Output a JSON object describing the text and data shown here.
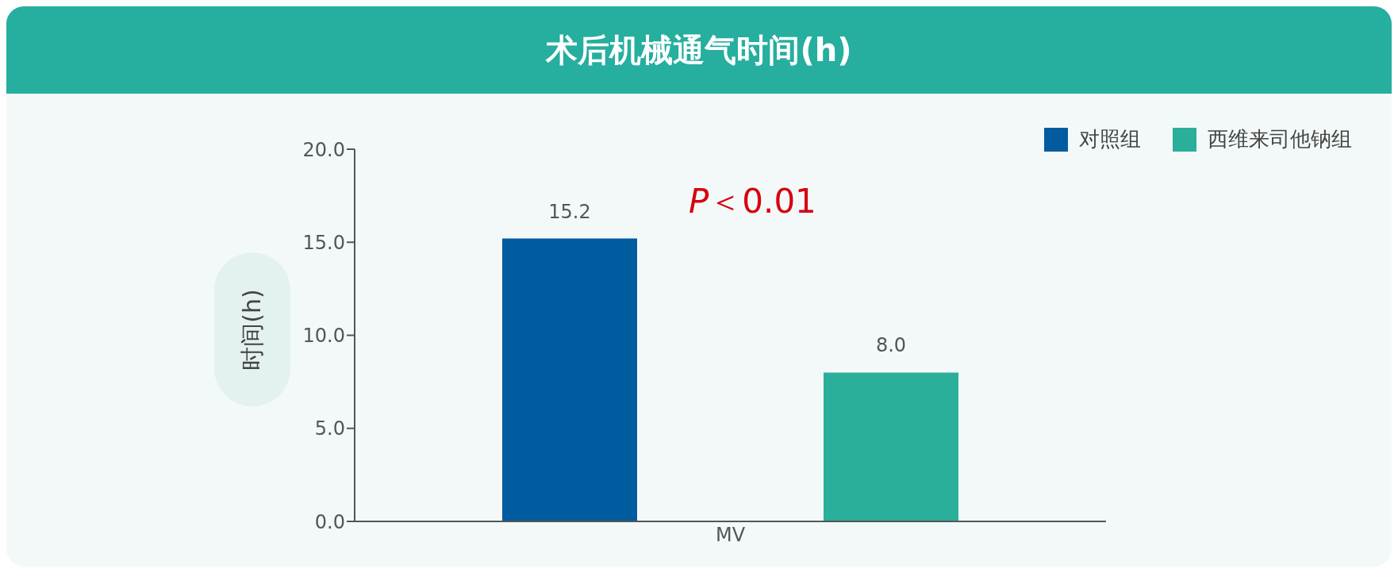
{
  "chart_data": {
    "type": "bar",
    "title": "术后机械通气时间(h)",
    "ylabel": "时间(h)",
    "categories": [
      "MV"
    ],
    "series": [
      {
        "name": "对照组",
        "color": "#005b9f",
        "values": [
          15.2
        ],
        "value_labels": [
          "15.2"
        ]
      },
      {
        "name": "西维来司他钠组",
        "color": "#2aaf9b",
        "values": [
          8.0
        ],
        "value_labels": [
          "8.0"
        ]
      }
    ],
    "ylim": [
      0,
      20
    ],
    "yticks": [
      {
        "value": 0,
        "label": "0.0"
      },
      {
        "value": 5,
        "label": "5.0"
      },
      {
        "value": 10,
        "label": "10.0"
      },
      {
        "value": 15,
        "label": "15.0"
      },
      {
        "value": 20,
        "label": "20.0"
      }
    ],
    "legend": "top right",
    "annotations": [
      "P＜0.01"
    ]
  }
}
